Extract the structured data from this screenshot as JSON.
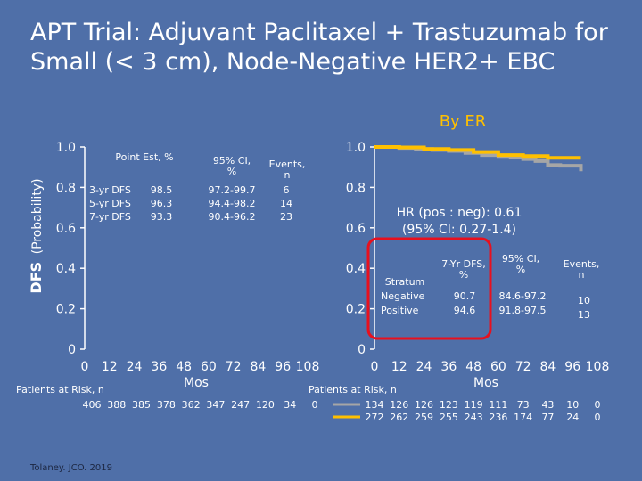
{
  "slide": {
    "title_line1": "APT Trial: Adjuvant Paclitaxel + Trastuzumab for",
    "title_line2": "Small (< 3 cm), Node-Negative HER2+ EBC",
    "subtitle": "By ER",
    "citation": "Tolaney. JCO. 2019"
  },
  "colors": {
    "background": "#4f6fa8",
    "title_text": "#ffffff",
    "subtitle_text": "#ffc000",
    "er_negative_line": "#a6a6a6",
    "er_positive_line": "#ffc000",
    "highlight_box": "#e8101e",
    "axis": "#ffffff"
  },
  "left_panel": {
    "ylabel_bold": "DFS",
    "ylabel_rest": "(Probability)",
    "table": {
      "headers": [
        "Point Est, %",
        "95% CI, %",
        "Events, n"
      ],
      "rows": [
        {
          "label": "3-yr DFS",
          "est": "98.5",
          "ci": "97.2-99.7",
          "events": "6"
        },
        {
          "label": "5-yr DFS",
          "est": "96.3",
          "ci": "94.4-98.2",
          "events": "14"
        },
        {
          "label": "7-yr DFS",
          "est": "93.3",
          "ci": "90.4-96.2",
          "events": "23"
        }
      ]
    },
    "risk_label": "Patients at Risk, n",
    "risk_values": [
      "406",
      "388",
      "385",
      "378",
      "362",
      "347",
      "247",
      "120",
      "34",
      "0"
    ]
  },
  "right_panel": {
    "hr_line1": "HR (pos : neg): 0.61",
    "hr_line2": "(95% CI: 0.27-1.4)",
    "table": {
      "headers": [
        "Stratum",
        "7-Yr DFS, %",
        "95% CI, %",
        "Events, n"
      ],
      "rows": [
        {
          "label": "Negative",
          "dfs": "90.7",
          "ci": "84.6-97.2",
          "events": "10"
        },
        {
          "label": "Positive",
          "dfs": "94.6",
          "ci": "91.8-97.5",
          "events": "13"
        }
      ]
    },
    "risk_label": "Patients at Risk, n",
    "risk_rows": [
      {
        "values": [
          "134",
          "126",
          "126",
          "123",
          "119",
          "111",
          "73",
          "43",
          "10",
          "0"
        ]
      },
      {
        "values": [
          "272",
          "262",
          "259",
          "255",
          "243",
          "236",
          "174",
          "77",
          "24",
          "0"
        ]
      }
    ]
  },
  "chart_data": [
    {
      "type": "line",
      "xlabel": "Mos",
      "ylabel": "DFS (Probability)",
      "xlim": [
        0,
        108
      ],
      "ylim": [
        0,
        1.0
      ],
      "x_ticks": [
        0,
        12,
        24,
        36,
        48,
        60,
        72,
        84,
        96,
        108
      ],
      "x_tick_labels": [
        "0",
        "12",
        "24",
        "36",
        "48",
        "60",
        "72",
        "84",
        "96",
        "108"
      ],
      "y_ticks": [
        0,
        0.2,
        0.4,
        0.6,
        0.8,
        1.0
      ],
      "y_tick_labels": [
        "0",
        "0.2",
        "0.4",
        "0.6",
        "0.8",
        "1.0"
      ],
      "series": []
    },
    {
      "type": "line",
      "xlabel": "Mos",
      "xlim": [
        0,
        108
      ],
      "ylim": [
        0,
        1.0
      ],
      "x_ticks": [
        0,
        12,
        24,
        36,
        48,
        60,
        72,
        84,
        96,
        108
      ],
      "x_tick_labels": [
        "0",
        "12",
        "24",
        "36",
        "48",
        "60",
        "72",
        "84",
        "96",
        "108"
      ],
      "y_ticks": [
        0,
        0.2,
        0.4,
        0.6,
        0.8,
        1.0
      ],
      "y_tick_labels": [
        "0",
        "0.2",
        "0.4",
        "0.6",
        "0.8",
        "1.0"
      ],
      "series": [
        {
          "stratum": "Negative",
          "color": "#a6a6a6",
          "x": [
            0,
            12,
            20,
            28,
            36,
            44,
            52,
            60,
            66,
            72,
            78,
            84,
            90,
            96,
            100
          ],
          "y": [
            1.0,
            0.995,
            0.99,
            0.985,
            0.98,
            0.97,
            0.96,
            0.955,
            0.95,
            0.94,
            0.93,
            0.91,
            0.907,
            0.907,
            0.88
          ]
        },
        {
          "stratum": "Positive",
          "color": "#ffc000",
          "x": [
            0,
            12,
            24,
            36,
            48,
            60,
            72,
            84,
            96,
            100
          ],
          "y": [
            1.0,
            0.998,
            0.99,
            0.985,
            0.975,
            0.96,
            0.955,
            0.946,
            0.946,
            0.946
          ]
        }
      ]
    }
  ]
}
